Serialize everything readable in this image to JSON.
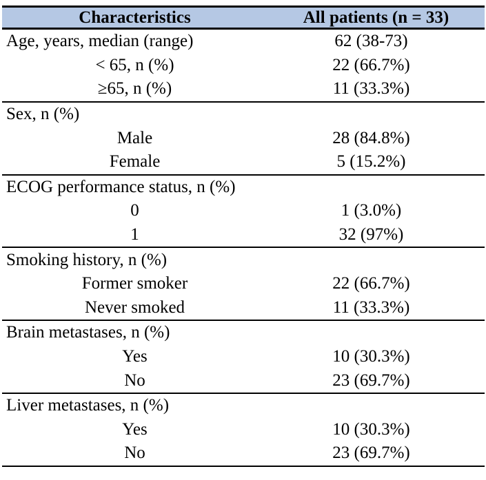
{
  "table": {
    "title_semantic": "Patient baseline characteristics table",
    "colors": {
      "header_background": "#b5c8e4",
      "border": "#000000",
      "text": "#000000",
      "page_background": "#ffffff"
    },
    "header": {
      "characteristics": "Characteristics",
      "all_patients": "All patients (n = 33)"
    },
    "sections": [
      {
        "rows": [
          {
            "label": "Age, years, median (range)",
            "value": "62 (38-73)",
            "indent": false
          },
          {
            "label": "< 65, n (%)",
            "value": "22 (66.7%)",
            "indent": true
          },
          {
            "label": "≥65, n (%)",
            "value": "11 (33.3%)",
            "indent": true
          }
        ]
      },
      {
        "rows": [
          {
            "label": "Sex, n (%)",
            "value": "",
            "indent": false
          },
          {
            "label": "Male",
            "value": "28 (84.8%)",
            "indent": true
          },
          {
            "label": "Female",
            "value": "5 (15.2%)",
            "indent": true
          }
        ]
      },
      {
        "rows": [
          {
            "label": "ECOG performance status, n (%)",
            "value": "",
            "indent": false
          },
          {
            "label": "0",
            "value": "1 (3.0%)",
            "indent": true
          },
          {
            "label": "1",
            "value": "32 (97%)",
            "indent": true
          }
        ]
      },
      {
        "rows": [
          {
            "label": "Smoking history, n (%)",
            "value": "",
            "indent": false
          },
          {
            "label": "Former smoker",
            "value": "22 (66.7%)",
            "indent": true
          },
          {
            "label": "Never smoked",
            "value": "11 (33.3%)",
            "indent": true
          }
        ]
      },
      {
        "rows": [
          {
            "label": "Brain metastases, n (%)",
            "value": "",
            "indent": false
          },
          {
            "label": "Yes",
            "value": "10 (30.3%)",
            "indent": true
          },
          {
            "label": "No",
            "value": "23 (69.7%)",
            "indent": true
          }
        ]
      },
      {
        "rows": [
          {
            "label": "Liver metastases, n (%)",
            "value": "",
            "indent": false
          },
          {
            "label": "Yes",
            "value": "10 (30.3%)",
            "indent": true
          },
          {
            "label": "No",
            "value": "23 (69.7%)",
            "indent": true
          }
        ]
      }
    ]
  }
}
